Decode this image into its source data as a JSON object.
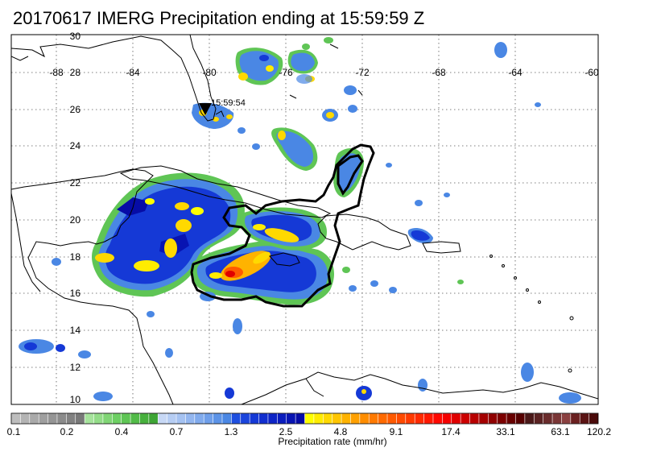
{
  "title": "20170617 IMERG Precipitation ending at 15:59:59 Z",
  "map": {
    "lat_labels": [
      "30",
      "28",
      "26",
      "24",
      "22",
      "20",
      "18",
      "16",
      "14",
      "12",
      "10"
    ],
    "lon_labels": [
      "-88",
      "-84",
      "-80",
      "-76",
      "-72",
      "-68",
      "-64",
      "-60"
    ],
    "marker": {
      "icon": "triangle-down-icon",
      "label": "15:59:54"
    },
    "colors": {
      "coast": "#000000",
      "grid": "#555555",
      "contour": "#000000"
    }
  },
  "colorbar": {
    "label": "Precipitation rate (mm/hr)",
    "tick_labels": [
      "0.1",
      "0.2",
      "0.4",
      "0.7",
      "1.3",
      "2.5",
      "4.8",
      "9.1",
      "17.4",
      "33.1",
      "63.1",
      "120.2"
    ],
    "colors": [
      "#bdbdbd",
      "#b3b3b3",
      "#a9a9a9",
      "#9f9f9f",
      "#959595",
      "#8b8b8b",
      "#818181",
      "#787878",
      "#a6e39c",
      "#93dc88",
      "#80d575",
      "#6dcf63",
      "#5fc555",
      "#52bb48",
      "#47b03d",
      "#3ea535",
      "#c7d8f5",
      "#b6cdf3",
      "#a5c2f1",
      "#93b6ef",
      "#81abed",
      "#6f9fea",
      "#5c93e7",
      "#4a87e4",
      "#1e4fe0",
      "#1a44dc",
      "#1539d6",
      "#112ecf",
      "#0d24c6",
      "#0a1cbd",
      "#0814b2",
      "#060ca6",
      "#ffff00",
      "#ffec00",
      "#ffd900",
      "#ffc600",
      "#ffb300",
      "#ffa000",
      "#ff8d00",
      "#ff7a00",
      "#ff6a00",
      "#ff5a00",
      "#ff4a00",
      "#ff3a00",
      "#ff2a00",
      "#ff1800",
      "#ff0800",
      "#f50000",
      "#e00000",
      "#cc0000",
      "#b80000",
      "#a40000",
      "#900000",
      "#7c0000",
      "#680000",
      "#560000",
      "#4a1818",
      "#5a2222",
      "#6a2c2c",
      "#7a3636",
      "#8a4040",
      "#6a2020",
      "#5a1414",
      "#4a0a0a"
    ]
  }
}
